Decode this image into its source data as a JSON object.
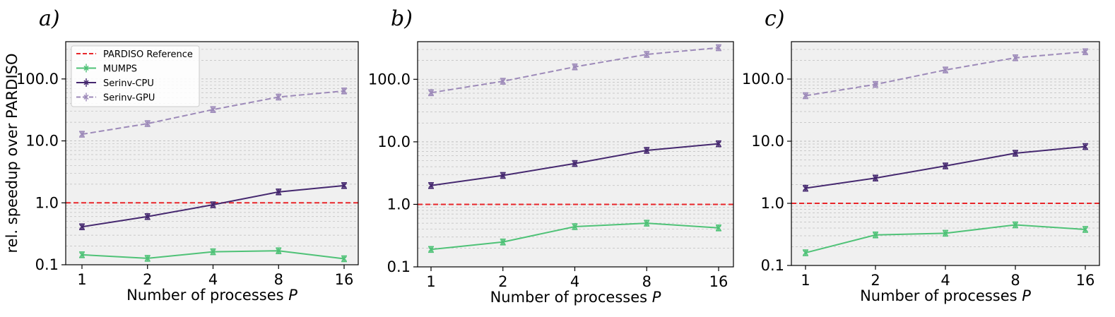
{
  "figure": {
    "ylabel": "rel. speedup over PARDISO",
    "xlabel_prefix": "Number of processes ",
    "xlabel_var": "P",
    "legend": [
      "PARDISO Reference",
      "MUMPS",
      "Serinv-CPU",
      "Serinv-GPU"
    ]
  },
  "colors": {
    "reference": "#e8262a",
    "mumps": "#4fc277",
    "serinv_cpu": "#45286f",
    "serinv_gpu": "#9d8ab9",
    "plot_bg": "#f0f0f0",
    "grid": "#bdbdbd"
  },
  "chart_data": [
    {
      "type": "line",
      "panel_label": "a)",
      "y_scale": "log",
      "ylim": [
        0.1,
        400
      ],
      "y_ticks": [
        0.1,
        1.0,
        10.0,
        100.0
      ],
      "y_tick_labels": [
        "0.1",
        "1.0",
        "10.0",
        "100.0"
      ],
      "x": [
        1,
        2,
        4,
        8,
        16
      ],
      "x_tick_labels": [
        "1",
        "2",
        "4",
        "8",
        "16"
      ],
      "reference": 1.0,
      "grid": true,
      "legend_position": "top-left",
      "series": [
        {
          "name": "MUMPS",
          "values": [
            0.145,
            0.127,
            0.162,
            0.168,
            0.125
          ]
        },
        {
          "name": "Serinv-CPU",
          "values": [
            0.41,
            0.6,
            0.93,
            1.5,
            1.9
          ]
        },
        {
          "name": "Serinv-GPU",
          "values": [
            12.8,
            19.0,
            32.0,
            51.0,
            64.0
          ]
        }
      ]
    },
    {
      "type": "line",
      "panel_label": "b)",
      "y_scale": "log",
      "ylim": [
        0.1,
        400
      ],
      "y_ticks": [
        0.1,
        1.0,
        10.0,
        100.0
      ],
      "y_tick_labels": [
        "0.1",
        "1.0",
        "10.0",
        "100.0"
      ],
      "x": [
        1,
        2,
        4,
        8,
        16
      ],
      "x_tick_labels": [
        "1",
        "2",
        "4",
        "8",
        "16"
      ],
      "reference": 1.0,
      "grid": true,
      "series": [
        {
          "name": "MUMPS",
          "values": [
            0.19,
            0.25,
            0.44,
            0.5,
            0.42
          ]
        },
        {
          "name": "Serinv-CPU",
          "values": [
            2.0,
            2.9,
            4.5,
            7.3,
            9.3
          ]
        },
        {
          "name": "Serinv-GPU",
          "values": [
            61.0,
            93.0,
            158.0,
            250.0,
            320.0
          ]
        }
      ]
    },
    {
      "type": "line",
      "panel_label": "c)",
      "y_scale": "log",
      "ylim": [
        0.1,
        400
      ],
      "y_ticks": [
        0.1,
        1.0,
        10.0,
        100.0
      ],
      "y_tick_labels": [
        "0.1",
        "1.0",
        "10.0",
        "100.0"
      ],
      "x": [
        1,
        2,
        4,
        8,
        16
      ],
      "x_tick_labels": [
        "1",
        "2",
        "4",
        "8",
        "16"
      ],
      "reference": 1.0,
      "grid": true,
      "series": [
        {
          "name": "MUMPS",
          "values": [
            0.16,
            0.31,
            0.33,
            0.45,
            0.38
          ]
        },
        {
          "name": "Serinv-CPU",
          "values": [
            1.75,
            2.55,
            4.0,
            6.4,
            8.2
          ]
        },
        {
          "name": "Serinv-GPU",
          "values": [
            54.0,
            82.0,
            140.0,
            220.0,
            275.0
          ]
        }
      ]
    }
  ]
}
